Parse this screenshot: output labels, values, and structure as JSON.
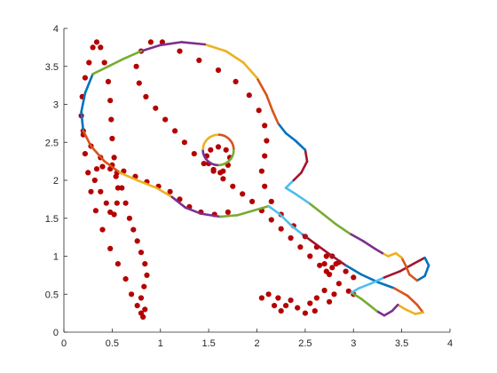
{
  "chart_data": {
    "type": "scatter",
    "title": "",
    "xlabel": "",
    "ylabel": "",
    "xlim": [
      0,
      4
    ],
    "ylim": [
      0,
      4
    ],
    "xticks": [
      "0",
      "0.5",
      "1",
      "1.5",
      "2",
      "2.5",
      "3",
      "3.5",
      "4"
    ],
    "yticks": [
      "0",
      "0.5",
      "1",
      "1.5",
      "2",
      "2.5",
      "3",
      "3.5",
      "4"
    ],
    "grid": false,
    "legend": "none",
    "series": [
      {
        "kind": "markers",
        "color": "#b40000",
        "points": [
          [
            0.82,
            0.2
          ],
          [
            0.84,
            0.3
          ],
          [
            0.8,
            0.45
          ],
          [
            0.83,
            0.6
          ],
          [
            0.86,
            0.75
          ],
          [
            0.84,
            0.9
          ],
          [
            0.8,
            1.05
          ],
          [
            0.76,
            1.2
          ],
          [
            0.72,
            1.35
          ],
          [
            0.68,
            1.5
          ],
          [
            0.64,
            1.7
          ],
          [
            0.6,
            1.9
          ],
          [
            0.55,
            2.1
          ],
          [
            0.52,
            2.3
          ],
          [
            0.5,
            2.55
          ],
          [
            0.49,
            2.8
          ],
          [
            0.48,
            3.05
          ],
          [
            0.46,
            3.3
          ],
          [
            0.42,
            3.55
          ],
          [
            0.38,
            3.75
          ],
          [
            0.34,
            3.82
          ],
          [
            0.3,
            3.75
          ],
          [
            0.26,
            3.55
          ],
          [
            0.22,
            3.35
          ],
          [
            0.19,
            3.1
          ],
          [
            0.18,
            2.85
          ],
          [
            0.2,
            2.6
          ],
          [
            0.22,
            2.35
          ],
          [
            0.25,
            2.1
          ],
          [
            0.28,
            1.85
          ],
          [
            0.33,
            1.6
          ],
          [
            0.4,
            1.35
          ],
          [
            0.48,
            1.1
          ],
          [
            0.56,
            0.9
          ],
          [
            0.64,
            0.7
          ],
          [
            0.7,
            0.5
          ],
          [
            0.76,
            0.35
          ],
          [
            0.8,
            0.25
          ],
          [
            0.52,
            1.55
          ],
          [
            0.55,
            1.7
          ],
          [
            0.56,
            1.9
          ],
          [
            0.54,
            2.05
          ],
          [
            0.48,
            2.15
          ],
          [
            0.4,
            2.18
          ],
          [
            0.34,
            2.15
          ],
          [
            0.32,
            2.0
          ],
          [
            0.38,
            1.85
          ],
          [
            0.44,
            1.7
          ],
          [
            0.48,
            1.58
          ],
          [
            0.2,
            2.65
          ],
          [
            0.28,
            2.45
          ],
          [
            0.38,
            2.3
          ],
          [
            0.5,
            2.2
          ],
          [
            0.62,
            2.12
          ],
          [
            0.74,
            2.05
          ],
          [
            0.86,
            1.98
          ],
          [
            0.98,
            1.92
          ],
          [
            1.1,
            1.85
          ],
          [
            1.2,
            1.75
          ],
          [
            1.3,
            1.65
          ],
          [
            1.42,
            1.58
          ],
          [
            1.56,
            1.55
          ],
          [
            1.7,
            1.58
          ],
          [
            0.9,
            3.82
          ],
          [
            0.8,
            3.7
          ],
          [
            0.75,
            3.5
          ],
          [
            0.78,
            3.28
          ],
          [
            0.85,
            3.1
          ],
          [
            0.95,
            2.95
          ],
          [
            1.05,
            2.8
          ],
          [
            1.15,
            2.65
          ],
          [
            1.25,
            2.5
          ],
          [
            1.35,
            2.35
          ],
          [
            1.45,
            2.22
          ],
          [
            1.55,
            2.12
          ],
          [
            1.65,
            2.02
          ],
          [
            1.75,
            1.92
          ],
          [
            1.85,
            1.82
          ],
          [
            1.95,
            1.72
          ],
          [
            2.05,
            1.6
          ],
          [
            2.15,
            1.48
          ],
          [
            2.25,
            1.36
          ],
          [
            2.35,
            1.24
          ],
          [
            2.45,
            1.12
          ],
          [
            2.55,
            1.0
          ],
          [
            2.65,
            0.88
          ],
          [
            2.75,
            0.76
          ],
          [
            2.85,
            0.64
          ],
          [
            2.95,
            0.54
          ],
          [
            3.0,
            0.5
          ],
          [
            1.02,
            3.82
          ],
          [
            1.2,
            3.7
          ],
          [
            1.4,
            3.58
          ],
          [
            1.6,
            3.45
          ],
          [
            1.78,
            3.3
          ],
          [
            1.92,
            3.12
          ],
          [
            2.02,
            2.92
          ],
          [
            2.08,
            2.72
          ],
          [
            2.1,
            2.52
          ],
          [
            2.08,
            2.32
          ],
          [
            2.05,
            2.12
          ],
          [
            2.08,
            1.92
          ],
          [
            2.15,
            1.72
          ],
          [
            2.25,
            1.55
          ],
          [
            2.38,
            1.4
          ],
          [
            2.5,
            1.26
          ],
          [
            2.62,
            1.12
          ],
          [
            2.72,
            1.0
          ],
          [
            2.82,
            0.9
          ],
          [
            2.92,
            0.8
          ],
          [
            3.0,
            0.72
          ],
          [
            1.62,
            2.1
          ],
          [
            1.55,
            2.14
          ],
          [
            1.5,
            2.22
          ],
          [
            1.48,
            2.32
          ],
          [
            1.52,
            2.4
          ],
          [
            1.6,
            2.44
          ],
          [
            1.68,
            2.4
          ],
          [
            1.72,
            2.3
          ],
          [
            1.7,
            2.2
          ],
          [
            1.65,
            2.12
          ],
          [
            2.75,
            0.4
          ],
          [
            2.8,
            0.5
          ],
          [
            2.7,
            0.55
          ],
          [
            2.62,
            0.45
          ],
          [
            2.55,
            0.38
          ],
          [
            2.6,
            0.28
          ],
          [
            2.5,
            0.25
          ],
          [
            2.42,
            0.32
          ],
          [
            2.35,
            0.42
          ],
          [
            2.3,
            0.35
          ],
          [
            2.25,
            0.28
          ],
          [
            2.18,
            0.35
          ],
          [
            2.22,
            0.45
          ],
          [
            2.12,
            0.5
          ],
          [
            2.05,
            0.45
          ],
          [
            2.78,
            1.0
          ],
          [
            2.85,
            0.92
          ],
          [
            2.78,
            0.85
          ],
          [
            2.7,
            0.9
          ],
          [
            2.72,
            0.8
          ]
        ]
      },
      {
        "kind": "line",
        "color_cycle": [
          "#0072bd",
          "#d95319",
          "#edb120",
          "#7e2f8e",
          "#77ac30",
          "#4dbeee",
          "#a2142f"
        ],
        "points": [
          [
            0.3,
            3.4
          ],
          [
            0.22,
            3.15
          ],
          [
            0.18,
            2.9
          ],
          [
            0.2,
            2.65
          ],
          [
            0.28,
            2.45
          ],
          [
            0.42,
            2.25
          ],
          [
            0.58,
            2.1
          ],
          [
            0.76,
            2.0
          ],
          [
            0.96,
            1.9
          ],
          [
            1.12,
            1.78
          ],
          [
            1.26,
            1.64
          ],
          [
            1.42,
            1.56
          ],
          [
            1.62,
            1.52
          ],
          [
            1.8,
            1.54
          ],
          [
            1.96,
            1.6
          ],
          [
            2.12,
            1.66
          ],
          [
            2.24,
            1.55
          ],
          [
            2.36,
            1.4
          ],
          [
            2.48,
            1.28
          ],
          [
            2.62,
            1.15
          ],
          [
            2.76,
            1.02
          ],
          [
            2.92,
            0.88
          ],
          [
            3.08,
            0.76
          ],
          [
            3.25,
            0.66
          ],
          [
            3.42,
            0.58
          ],
          [
            3.56,
            0.48
          ],
          [
            3.66,
            0.36
          ],
          [
            3.72,
            0.26
          ],
          [
            3.64,
            0.24
          ],
          [
            3.54,
            0.3
          ],
          [
            3.46,
            0.36
          ],
          [
            3.4,
            0.28
          ],
          [
            3.32,
            0.22
          ],
          [
            3.24,
            0.28
          ],
          [
            3.16,
            0.36
          ],
          [
            3.08,
            0.44
          ],
          [
            2.98,
            0.52
          ],
          [
            3.06,
            0.58
          ],
          [
            3.18,
            0.64
          ],
          [
            3.32,
            0.72
          ],
          [
            3.48,
            0.8
          ],
          [
            3.62,
            0.9
          ],
          [
            3.74,
            0.98
          ],
          [
            3.78,
            0.88
          ],
          [
            3.74,
            0.74
          ],
          [
            3.66,
            0.68
          ],
          [
            3.58,
            0.76
          ],
          [
            3.54,
            0.88
          ],
          [
            3.5,
            0.98
          ],
          [
            3.44,
            1.04
          ],
          [
            3.36,
            1.0
          ],
          [
            3.3,
            1.04
          ],
          [
            3.22,
            1.1
          ],
          [
            3.1,
            1.2
          ],
          [
            2.96,
            1.3
          ],
          [
            2.82,
            1.42
          ],
          [
            2.68,
            1.56
          ],
          [
            2.54,
            1.7
          ],
          [
            2.4,
            1.82
          ],
          [
            2.3,
            1.9
          ],
          [
            2.38,
            2.0
          ],
          [
            2.46,
            2.1
          ],
          [
            2.52,
            2.25
          ],
          [
            2.5,
            2.4
          ],
          [
            2.4,
            2.52
          ],
          [
            2.3,
            2.62
          ],
          [
            2.22,
            2.75
          ],
          [
            2.16,
            2.92
          ],
          [
            2.1,
            3.12
          ],
          [
            2.0,
            3.35
          ],
          [
            1.86,
            3.55
          ],
          [
            1.68,
            3.7
          ],
          [
            1.46,
            3.79
          ],
          [
            1.22,
            3.82
          ],
          [
            1.0,
            3.78
          ],
          [
            0.8,
            3.7
          ],
          [
            0.62,
            3.6
          ],
          [
            0.46,
            3.5
          ],
          [
            0.3,
            3.4
          ]
        ]
      },
      {
        "kind": "ring",
        "color_cycle": [
          "#d95319",
          "#edb120",
          "#7e2f8e",
          "#77ac30"
        ],
        "center": [
          1.6,
          2.4
        ],
        "rx": 0.16,
        "ry": 0.2
      }
    ]
  }
}
